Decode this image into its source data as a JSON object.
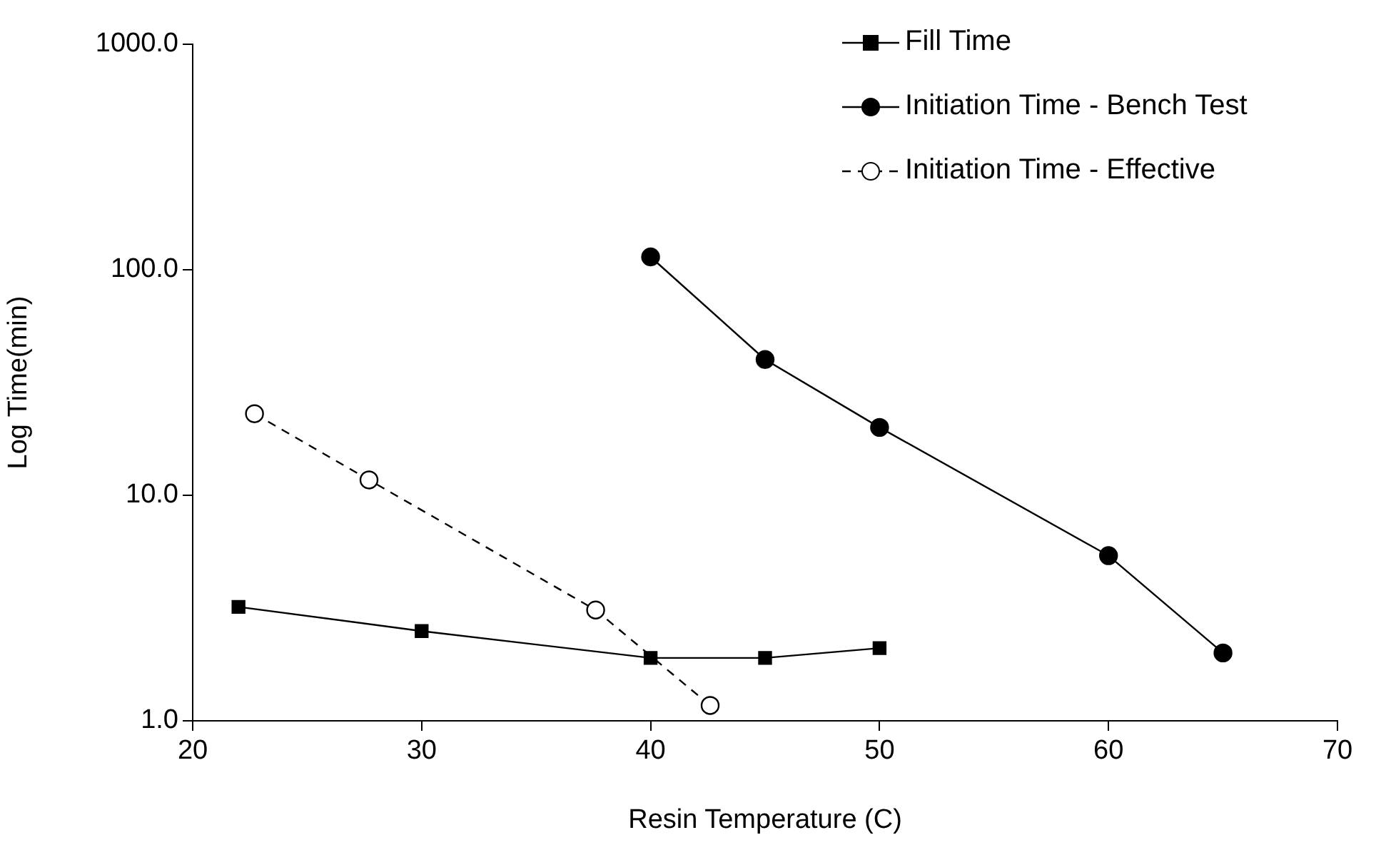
{
  "chart_data": {
    "type": "line",
    "xlabel": "Resin Temperature (C)",
    "ylabel": "Log Time(min)",
    "xlim": [
      20,
      70
    ],
    "xticks": [
      20,
      30,
      40,
      50,
      60,
      70
    ],
    "ylim": [
      1,
      1000
    ],
    "yticks": [
      {
        "value": 1,
        "label": "1.0"
      },
      {
        "value": 10,
        "label": "10.0"
      },
      {
        "value": 100,
        "label": "100.0"
      },
      {
        "value": 1000,
        "label": "1000.0"
      }
    ],
    "log": "y",
    "grid": false,
    "legend": "top right",
    "series": [
      {
        "name": "Fill Time",
        "color": "#000000",
        "marker": "square",
        "line_style": "solid",
        "x": [
          22,
          30,
          40,
          45,
          50
        ],
        "values": [
          3.2,
          2.5,
          1.9,
          1.9,
          2.1
        ]
      },
      {
        "name": "Initiation Time - Bench Test",
        "color": "#000000",
        "marker": "circle",
        "line_style": "solid",
        "x": [
          40,
          45,
          50,
          60,
          65
        ],
        "values": [
          114,
          40,
          20,
          5.4,
          2.0
        ]
      },
      {
        "name": "Initiation Time - Effective",
        "color": "#000000",
        "marker": "circle",
        "colors": [
          "#ffffff",
          "#ffffff",
          "#ffffff",
          "#ffffff"
        ],
        "line_style": "dashed",
        "x": [
          22.7,
          27.7,
          37.6,
          42.6
        ],
        "values": [
          23,
          11.7,
          3.1,
          1.17
        ]
      }
    ]
  }
}
